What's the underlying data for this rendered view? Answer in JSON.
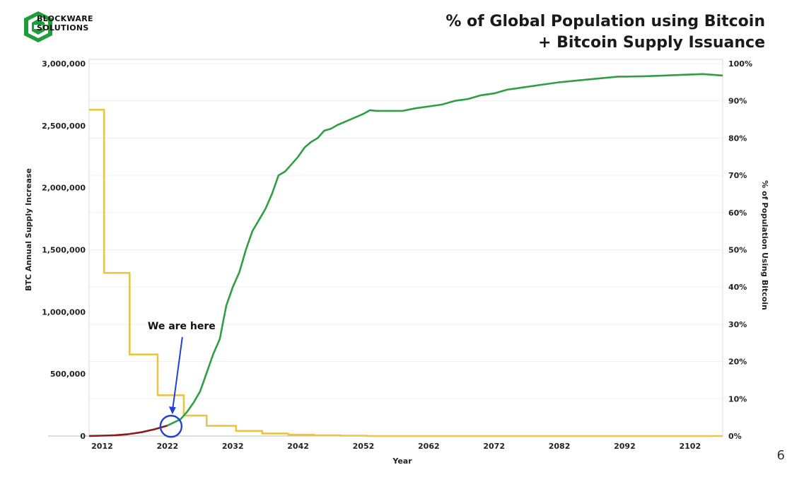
{
  "logo": {
    "line1": "BLOCKWARE",
    "line2": "SOLUTIONS",
    "color": "#1f9d3a"
  },
  "title": {
    "line1": "% of Global Population using Bitcoin",
    "line2": "+ Bitcoin Supply Issuance"
  },
  "page_number": "6",
  "chart_data": {
    "type": "line",
    "xlabel": "Year",
    "ylabel_left": "BTC Annual Supply Increase",
    "ylabel_right": "% of Population Using Bitcoin",
    "xlim": [
      2010,
      2107
    ],
    "ylim_left": [
      0,
      3000000
    ],
    "ylim_right": [
      0,
      100
    ],
    "x_ticks": [
      2012,
      2022,
      2032,
      2042,
      2052,
      2062,
      2072,
      2082,
      2092,
      2102
    ],
    "left_tick_labels": [
      "0",
      "500,000",
      "1,000,000",
      "1,500,000",
      "2,000,000",
      "2,500,000",
      "3,000,000"
    ],
    "left_tick_values": [
      0,
      500000,
      1000000,
      1500000,
      2000000,
      2500000,
      3000000
    ],
    "right_tick_labels": [
      "0%",
      "10%",
      "20%",
      "30%",
      "40%",
      "50%",
      "60%",
      "70%",
      "80%",
      "90%",
      "100%"
    ],
    "right_tick_values": [
      0,
      10,
      20,
      30,
      40,
      50,
      60,
      70,
      80,
      90,
      100
    ],
    "grid": "horizontal",
    "series": [
      {
        "axis": "left",
        "color": "#e8c44a",
        "x": [
          2010,
          2012.3,
          2012.3,
          2016.2,
          2016.2,
          2020.5,
          2020.5,
          2023.5,
          2023.5,
          2024.5,
          2024.5,
          2027.5,
          2027.5,
          2028,
          2028,
          2031.5,
          2031.5,
          2032.5,
          2032.5,
          2036.5,
          2036.5,
          2040.5,
          2040.5,
          2044.5,
          2044.5,
          2048.5,
          2048.5,
          2052.5,
          2052.5,
          2107
        ],
        "values": [
          2628000,
          2628000,
          1314000,
          1314000,
          657000,
          657000,
          328500,
          328500,
          328500,
          328500,
          164250,
          164250,
          164250,
          164250,
          82125,
          82125,
          82125,
          82125,
          41062,
          41062,
          20531,
          20531,
          10265,
          10265,
          5132,
          5132,
          2566,
          2566,
          0,
          0
        ]
      },
      {
        "axis": "right",
        "color": "#8b1a1a",
        "x": [
          2010,
          2012,
          2014,
          2016,
          2018,
          2020,
          2022
        ],
        "values": [
          0,
          0.1,
          0.2,
          0.5,
          1.0,
          1.8,
          2.8
        ]
      },
      {
        "axis": "right",
        "color": "#2f9e44",
        "x": [
          2022,
          2024,
          2025,
          2026,
          2027,
          2028,
          2029,
          2030,
          2031,
          2032,
          2033,
          2034,
          2035,
          2036,
          2037,
          2038,
          2039,
          2040,
          2041,
          2042,
          2043,
          2044,
          2045,
          2046,
          2047,
          2048,
          2050,
          2052,
          2053,
          2054,
          2056,
          2058,
          2060,
          2062,
          2064,
          2066,
          2068,
          2070,
          2072,
          2074,
          2076,
          2078,
          2080,
          2082,
          2085,
          2088,
          2091,
          2092,
          2095,
          2098,
          2101,
          2104,
          2107
        ],
        "values": [
          2.8,
          4.5,
          6.5,
          9,
          12,
          17,
          22,
          26,
          35,
          40,
          44,
          50,
          55,
          58,
          61,
          65,
          70,
          71,
          73,
          75,
          77.5,
          79,
          80,
          82,
          82.5,
          83.5,
          85,
          86.5,
          87.5,
          87.3,
          87.3,
          87.3,
          88,
          88.5,
          89,
          90,
          90.5,
          91.5,
          92,
          93,
          93.5,
          94,
          94.5,
          95,
          95.5,
          96,
          96.5,
          96.5,
          96.6,
          96.8,
          97,
          97.2,
          96.8
        ]
      }
    ],
    "annotation": {
      "text": "We are here",
      "x": 2022,
      "y_right": 2.8,
      "circle_color": "#2340d6",
      "arrow_color": "#2340d6"
    }
  }
}
